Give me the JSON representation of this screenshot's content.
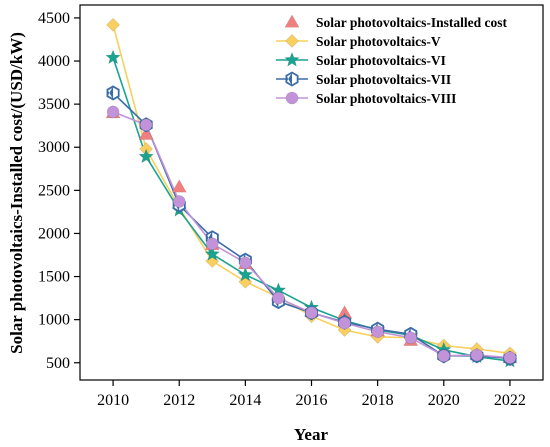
{
  "chart_data": {
    "type": "line",
    "xlabel": "Year",
    "ylabel": "Solar photovoltaics-Installed cost/(USD/kW)",
    "xlim": [
      2009,
      2023
    ],
    "ylim": [
      300,
      4650
    ],
    "x_ticks": [
      2010,
      2012,
      2014,
      2016,
      2018,
      2020,
      2022
    ],
    "y_ticks": [
      500,
      1000,
      1500,
      2000,
      2500,
      3000,
      3500,
      4000,
      4500
    ],
    "legend_position": "top-right",
    "grid": false,
    "series": [
      {
        "name": "Solar photovoltaics-Installed cost",
        "marker": "triangle",
        "color": "#F08080",
        "line": false,
        "x": [
          2010,
          2011,
          2012,
          2013,
          2014,
          2015,
          2016,
          2017,
          2018,
          2019,
          2020,
          2021,
          2022
        ],
        "y": [
          3400,
          3150,
          2540,
          1870,
          1650,
          1290,
          1100,
          1080,
          870,
          760,
          660,
          610,
          560
        ]
      },
      {
        "name": "Solar photovoltaics-V",
        "marker": "diamond",
        "color": "#F9CF5F",
        "line": true,
        "x": [
          2010,
          2011,
          2012,
          2013,
          2014,
          2015,
          2016,
          2017,
          2018,
          2019,
          2020,
          2021,
          2022
        ],
        "y": [
          4420,
          2980,
          2300,
          1680,
          1440,
          1260,
          1040,
          880,
          800,
          790,
          700,
          660,
          610
        ]
      },
      {
        "name": "Solar photovoltaics-VI",
        "marker": "star",
        "color": "#1AA390",
        "line": true,
        "x": [
          2010,
          2011,
          2012,
          2013,
          2014,
          2015,
          2016,
          2017,
          2018,
          2019,
          2020,
          2021,
          2022
        ],
        "y": [
          4040,
          2890,
          2270,
          1760,
          1520,
          1340,
          1140,
          990,
          880,
          820,
          650,
          570,
          520
        ]
      },
      {
        "name": "Solar photovoltaics-VII",
        "marker": "hexagon",
        "color": "#3A6DA8",
        "line": true,
        "x": [
          2010,
          2011,
          2012,
          2013,
          2014,
          2015,
          2016,
          2017,
          2018,
          2019,
          2020,
          2021,
          2022
        ],
        "y": [
          3630,
          3260,
          2330,
          1950,
          1690,
          1210,
          1080,
          970,
          890,
          830,
          580,
          580,
          550
        ]
      },
      {
        "name": "Solar photovoltaics-VIII",
        "marker": "circle",
        "color": "#C293D8",
        "line": true,
        "x": [
          2010,
          2011,
          2012,
          2013,
          2014,
          2015,
          2016,
          2017,
          2018,
          2019,
          2020,
          2021,
          2022
        ],
        "y": [
          3410,
          3260,
          2370,
          1880,
          1660,
          1250,
          1080,
          960,
          860,
          790,
          580,
          590,
          560
        ]
      }
    ]
  }
}
